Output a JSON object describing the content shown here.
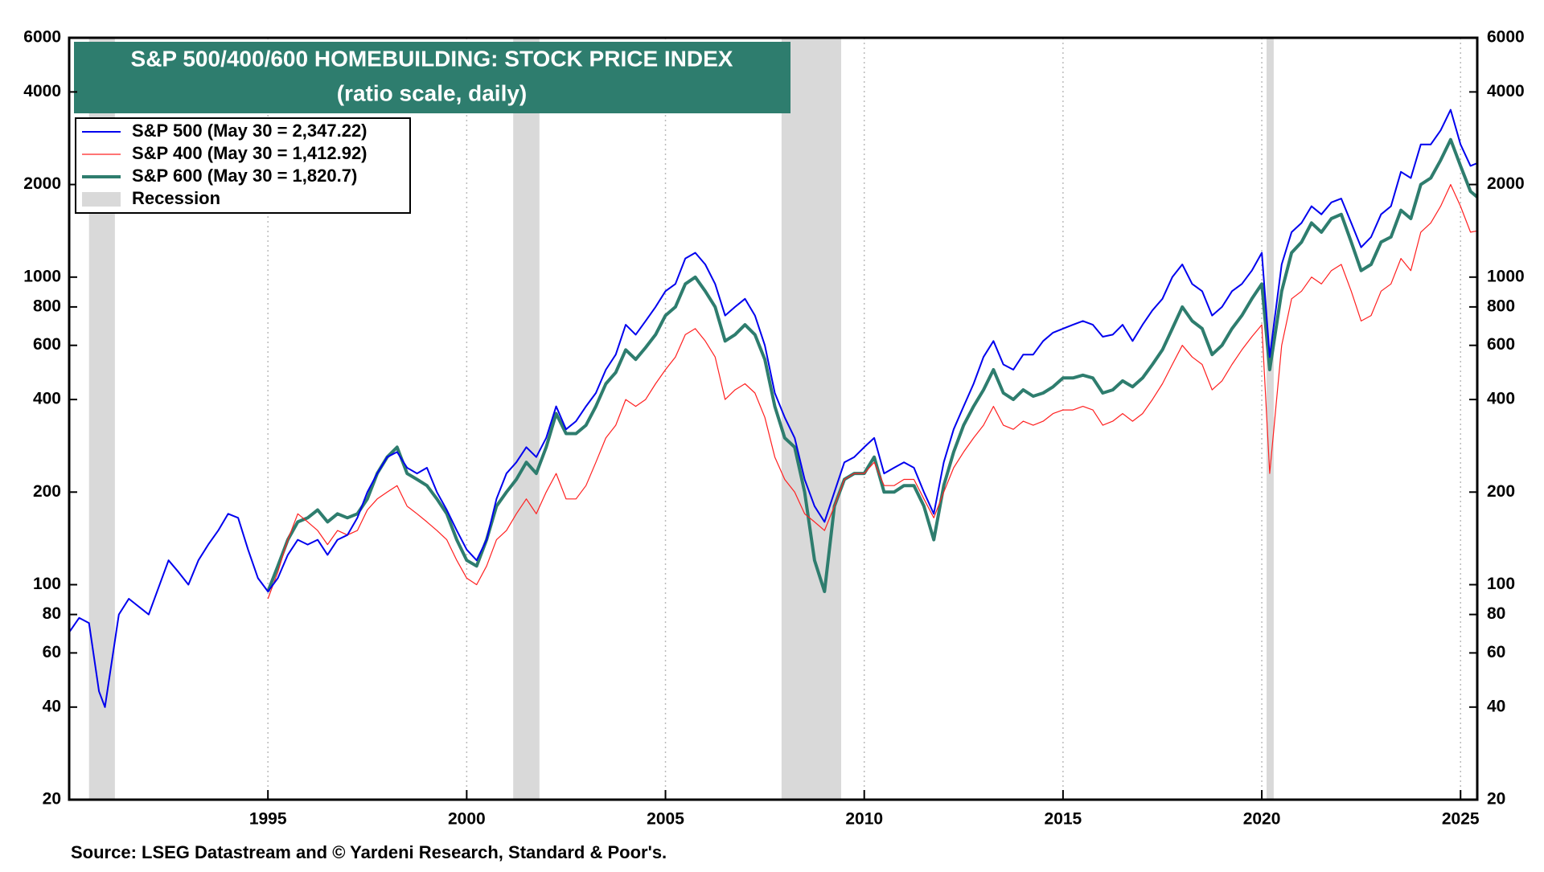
{
  "chart_data": {
    "type": "line",
    "title": "S&P 500/400/600 HOMEBUILDING: STOCK PRICE INDEX",
    "subtitle": "(ratio scale, daily)",
    "source": "Source: LSEG Datastream and © Yardeni Research, Standard & Poor's.",
    "log_scale": true,
    "grid": true,
    "legend_position": "upper-left",
    "xlim": [
      1990,
      2025.42
    ],
    "xticks": [
      1995,
      2000,
      2005,
      2010,
      2015,
      2020,
      2025
    ],
    "ylim": [
      20,
      6000
    ],
    "yticks": [
      20,
      40,
      60,
      80,
      100,
      200,
      400,
      600,
      800,
      1000,
      2000,
      4000,
      6000
    ],
    "recession_label": "Recession",
    "recession_color": "#d9d9d9",
    "recessions": [
      [
        1990.5,
        1991.15
      ],
      [
        2001.17,
        2001.83
      ],
      [
        2007.92,
        2009.42
      ],
      [
        2020.12,
        2020.3
      ]
    ],
    "x": [
      1990,
      1990.25,
      1990.5,
      1990.75,
      1990.9,
      1991.25,
      1991.5,
      1992,
      1992.5,
      1992.75,
      1993,
      1993.25,
      1993.5,
      1993.75,
      1994,
      1994.25,
      1994.5,
      1994.75,
      1995,
      1995.25,
      1995.5,
      1995.75,
      1996,
      1996.25,
      1996.5,
      1996.75,
      1997,
      1997.25,
      1997.5,
      1997.75,
      1998,
      1998.25,
      1998.5,
      1998.75,
      1999,
      1999.25,
      1999.5,
      1999.75,
      2000,
      2000.25,
      2000.5,
      2000.75,
      2001,
      2001.25,
      2001.5,
      2001.75,
      2002,
      2002.25,
      2002.5,
      2002.75,
      2003,
      2003.25,
      2003.5,
      2003.75,
      2004,
      2004.25,
      2004.5,
      2004.75,
      2005,
      2005.25,
      2005.5,
      2005.75,
      2006,
      2006.25,
      2006.5,
      2006.75,
      2007,
      2007.25,
      2007.5,
      2007.75,
      2008,
      2008.25,
      2008.5,
      2008.75,
      2009,
      2009.25,
      2009.5,
      2009.75,
      2010,
      2010.25,
      2010.5,
      2010.75,
      2011,
      2011.25,
      2011.5,
      2011.75,
      2012,
      2012.25,
      2012.5,
      2012.75,
      2013,
      2013.25,
      2013.5,
      2013.75,
      2014,
      2014.25,
      2014.5,
      2014.75,
      2015,
      2015.25,
      2015.5,
      2015.75,
      2016,
      2016.25,
      2016.5,
      2016.75,
      2017,
      2017.25,
      2017.5,
      2017.75,
      2018,
      2018.25,
      2018.5,
      2018.75,
      2019,
      2019.25,
      2019.5,
      2019.75,
      2020,
      2020.2,
      2020.5,
      2020.75,
      2021,
      2021.25,
      2021.5,
      2021.75,
      2022,
      2022.25,
      2022.5,
      2022.75,
      2023,
      2023.25,
      2023.5,
      2023.75,
      2024,
      2024.25,
      2024.5,
      2024.75,
      2025,
      2025.25,
      2025.42
    ],
    "series": [
      {
        "name": "S&P 500 (May 30 = 2,347.22)",
        "color": "#0000ee",
        "width": 2,
        "values": [
          70,
          78,
          75,
          45,
          40,
          80,
          90,
          80,
          120,
          110,
          100,
          120,
          135,
          150,
          170,
          165,
          130,
          105,
          95,
          105,
          125,
          140,
          135,
          140,
          125,
          140,
          145,
          165,
          200,
          230,
          260,
          270,
          240,
          230,
          240,
          200,
          175,
          150,
          130,
          120,
          140,
          190,
          230,
          250,
          280,
          260,
          300,
          380,
          320,
          340,
          380,
          420,
          500,
          560,
          700,
          650,
          720,
          800,
          900,
          950,
          1150,
          1200,
          1100,
          950,
          750,
          800,
          850,
          750,
          600,
          420,
          350,
          300,
          220,
          180,
          160,
          200,
          250,
          260,
          280,
          300,
          230,
          240,
          250,
          240,
          200,
          170,
          250,
          320,
          380,
          450,
          550,
          620,
          520,
          500,
          560,
          560,
          620,
          660,
          680,
          700,
          720,
          700,
          640,
          650,
          700,
          620,
          700,
          780,
          850,
          1000,
          1100,
          950,
          900,
          750,
          800,
          900,
          950,
          1050,
          1200,
          550,
          1100,
          1400,
          1500,
          1700,
          1600,
          1750,
          1800,
          1500,
          1250,
          1350,
          1600,
          1700,
          2200,
          2100,
          2700,
          2700,
          3000,
          3500,
          2700,
          2300,
          2347.22
        ]
      },
      {
        "name": "S&P 400 (May 30 = 1,412.92)",
        "color": "#ff2020",
        "width": 1.2,
        "values": [
          null,
          null,
          null,
          null,
          null,
          null,
          null,
          null,
          null,
          null,
          null,
          null,
          null,
          null,
          null,
          null,
          null,
          null,
          90,
          110,
          140,
          170,
          160,
          150,
          135,
          150,
          145,
          150,
          175,
          190,
          200,
          210,
          180,
          170,
          160,
          150,
          140,
          120,
          105,
          100,
          115,
          140,
          150,
          170,
          190,
          170,
          200,
          230,
          190,
          190,
          210,
          250,
          300,
          330,
          400,
          380,
          400,
          450,
          500,
          550,
          650,
          680,
          620,
          550,
          400,
          430,
          450,
          420,
          350,
          260,
          220,
          200,
          170,
          160,
          150,
          180,
          220,
          230,
          230,
          250,
          210,
          210,
          220,
          220,
          190,
          165,
          200,
          240,
          270,
          300,
          330,
          380,
          330,
          320,
          340,
          330,
          340,
          360,
          370,
          370,
          380,
          370,
          330,
          340,
          360,
          340,
          360,
          400,
          450,
          520,
          600,
          550,
          520,
          430,
          460,
          520,
          580,
          640,
          700,
          230,
          600,
          850,
          900,
          1000,
          950,
          1050,
          1100,
          900,
          720,
          750,
          900,
          950,
          1150,
          1050,
          1400,
          1500,
          1700,
          2000,
          1700,
          1400,
          1412.92
        ]
      },
      {
        "name": "S&P 600 (May 30 = 1,820.7)",
        "color": "#2e7d6e",
        "width": 4,
        "values": [
          null,
          null,
          null,
          null,
          null,
          null,
          null,
          null,
          null,
          null,
          null,
          null,
          null,
          null,
          null,
          null,
          null,
          null,
          95,
          115,
          140,
          160,
          165,
          175,
          160,
          170,
          165,
          170,
          190,
          230,
          260,
          280,
          230,
          220,
          210,
          190,
          170,
          140,
          120,
          115,
          140,
          180,
          200,
          220,
          250,
          230,
          280,
          360,
          310,
          310,
          330,
          380,
          450,
          490,
          580,
          540,
          590,
          650,
          750,
          800,
          950,
          1000,
          900,
          800,
          620,
          650,
          700,
          650,
          540,
          380,
          300,
          280,
          200,
          120,
          95,
          180,
          220,
          230,
          230,
          260,
          200,
          200,
          210,
          210,
          180,
          140,
          210,
          270,
          330,
          380,
          430,
          500,
          420,
          400,
          430,
          410,
          420,
          440,
          470,
          470,
          480,
          470,
          420,
          430,
          460,
          440,
          470,
          520,
          580,
          680,
          800,
          720,
          680,
          560,
          600,
          680,
          750,
          850,
          950,
          500,
          900,
          1200,
          1300,
          1500,
          1400,
          1550,
          1600,
          1300,
          1050,
          1100,
          1300,
          1350,
          1650,
          1550,
          2000,
          2100,
          2400,
          2800,
          2300,
          1900,
          1820.7
        ]
      }
    ]
  }
}
